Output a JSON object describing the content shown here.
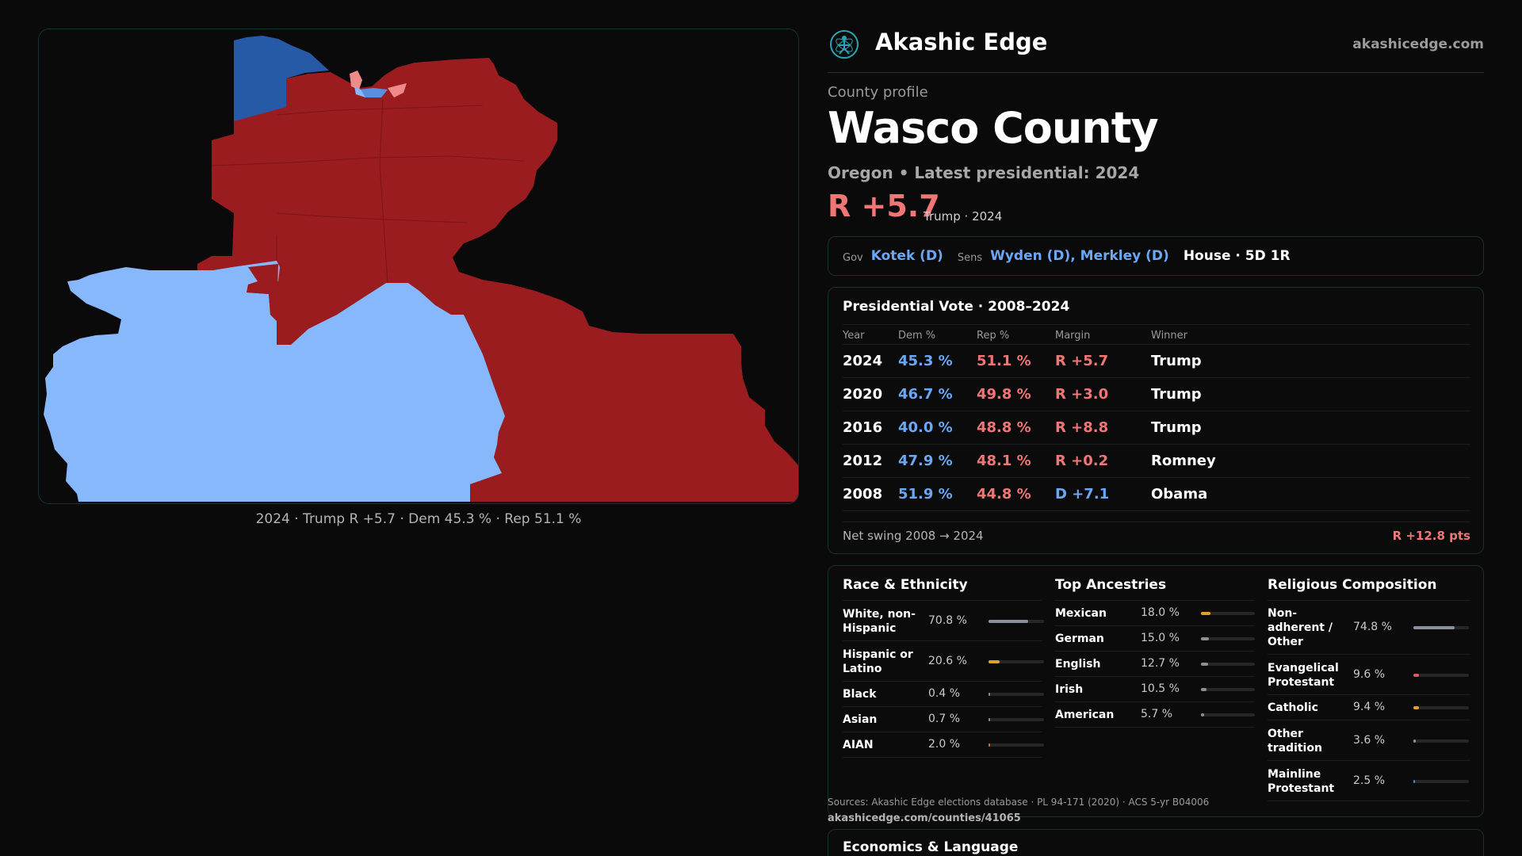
{
  "map": {
    "caption": "2024 · Trump R +5.7 · Dem 45.3 % · Rep 51.1 %",
    "colors": {
      "strong_rep": "#9b1c1f",
      "light_rep": "#f08a8a",
      "light_dem": "#86b8fb",
      "strong_dem": "#2659a6",
      "mid_dem": "#5a8fe0"
    }
  },
  "brand": {
    "name": "Akashic Edge",
    "url": "akashicedge.com",
    "logo_icon": "atom-person-icon"
  },
  "profile": {
    "label": "County profile",
    "title": "Wasco County",
    "subtitle": "Oregon • Latest presidential: 2024",
    "margin": "R +5.7",
    "margin_note": "Trump · 2024"
  },
  "officials": {
    "gov_label": "Gov",
    "gov": "Kotek (D)",
    "sens_label": "Sens",
    "sens": "Wyden (D), Merkley (D)",
    "house": "House · 5D 1R"
  },
  "presidential": {
    "title": "Presidential Vote · 2008–2024",
    "headers": {
      "year": "Year",
      "dem": "Dem %",
      "rep": "Rep %",
      "margin": "Margin",
      "winner": "Winner"
    },
    "rows": [
      {
        "year": "2024",
        "dem": "45.3 %",
        "rep": "51.1 %",
        "margin": "R +5.7",
        "party": "r",
        "winner": "Trump"
      },
      {
        "year": "2020",
        "dem": "46.7 %",
        "rep": "49.8 %",
        "margin": "R +3.0",
        "party": "r",
        "winner": "Trump"
      },
      {
        "year": "2016",
        "dem": "40.0 %",
        "rep": "48.8 %",
        "margin": "R +8.8",
        "party": "r",
        "winner": "Trump"
      },
      {
        "year": "2012",
        "dem": "47.9 %",
        "rep": "48.1 %",
        "margin": "R +0.2",
        "party": "r",
        "winner": "Romney"
      },
      {
        "year": "2008",
        "dem": "51.9 %",
        "rep": "44.8 %",
        "margin": "D +7.1",
        "party": "d",
        "winner": "Obama"
      }
    ],
    "swing_label": "Net swing 2008 → 2024",
    "swing_value": "R +12.8 pts"
  },
  "race": {
    "title": "Race & Ethnicity",
    "rows": [
      {
        "name": "White, non-\nHispanic",
        "value": "70.8 %",
        "fraction": 0.708,
        "color": "#8a909a"
      },
      {
        "name": "Hispanic or\nLatino",
        "value": "20.6 %",
        "fraction": 0.206,
        "color": "#e0a12a"
      },
      {
        "name": "Black",
        "value": "0.4 %",
        "fraction": 0.004,
        "color": "#8a909a"
      },
      {
        "name": "Asian",
        "value": "0.7 %",
        "fraction": 0.007,
        "color": "#8a909a"
      },
      {
        "name": "AIAN",
        "value": "2.0 %",
        "fraction": 0.02,
        "color": "#d9682b"
      }
    ]
  },
  "ancestries": {
    "title": "Top Ancestries",
    "rows": [
      {
        "name": "Mexican",
        "value": "18.0 %",
        "fraction": 0.18,
        "color": "#e0a12a"
      },
      {
        "name": "German",
        "value": "15.0 %",
        "fraction": 0.15,
        "color": "#8a909a"
      },
      {
        "name": "English",
        "value": "12.7 %",
        "fraction": 0.127,
        "color": "#8a909a"
      },
      {
        "name": "Irish",
        "value": "10.5 %",
        "fraction": 0.105,
        "color": "#8a909a"
      },
      {
        "name": "American",
        "value": "5.7 %",
        "fraction": 0.057,
        "color": "#8a909a"
      }
    ]
  },
  "religion": {
    "title": "Religious Composition",
    "rows": [
      {
        "name": "Non-\nadherent /\nOther",
        "value": "74.8 %",
        "fraction": 0.748,
        "color": "#8a909a"
      },
      {
        "name": "Evangelical\nProtestant",
        "value": "9.6 %",
        "fraction": 0.096,
        "color": "#e05c5c"
      },
      {
        "name": "Catholic",
        "value": "9.4 %",
        "fraction": 0.094,
        "color": "#e0a12a"
      },
      {
        "name": "Other\ntradition",
        "value": "3.6 %",
        "fraction": 0.036,
        "color": "#8a909a"
      },
      {
        "name": "Mainline\nProtestant",
        "value": "2.5 %",
        "fraction": 0.025,
        "color": "#4f86d9"
      }
    ]
  },
  "sources": {
    "text": "Sources: Akashic Edge elections database · PL 94-171 (2020) · ACS 5-yr B04006",
    "link": "akashicedge.com/counties/41065"
  },
  "economics": {
    "title": "Economics & Language"
  }
}
